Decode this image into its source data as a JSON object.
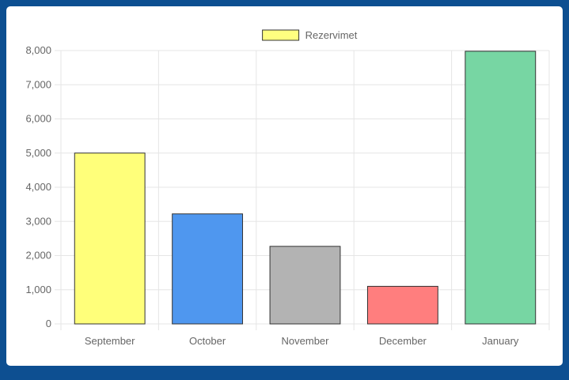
{
  "chart_data": {
    "type": "bar",
    "legend": {
      "label": "Rezervimet",
      "color": "#ffff80",
      "border": "#333333",
      "position": "top"
    },
    "categories": [
      "September",
      "October",
      "November",
      "December",
      "January"
    ],
    "values": [
      5000,
      3220,
      2270,
      1100,
      7980
    ],
    "colors": [
      "#ffff7a",
      "#4f97ef",
      "#b3b3b3",
      "#ff7e7e",
      "#77d6a3"
    ],
    "border_color": "#333333",
    "ylim": [
      0,
      8000
    ],
    "yticks": [
      0,
      1000,
      2000,
      3000,
      4000,
      5000,
      6000,
      7000,
      8000
    ],
    "ytick_labels": [
      "0",
      "1,000",
      "2,000",
      "3,000",
      "4,000",
      "5,000",
      "6,000",
      "7,000",
      "8,000"
    ],
    "grid": true
  },
  "colors": {
    "background": "#0d4f91",
    "panel": "#ffffff",
    "grid": "#e5e5e5"
  }
}
